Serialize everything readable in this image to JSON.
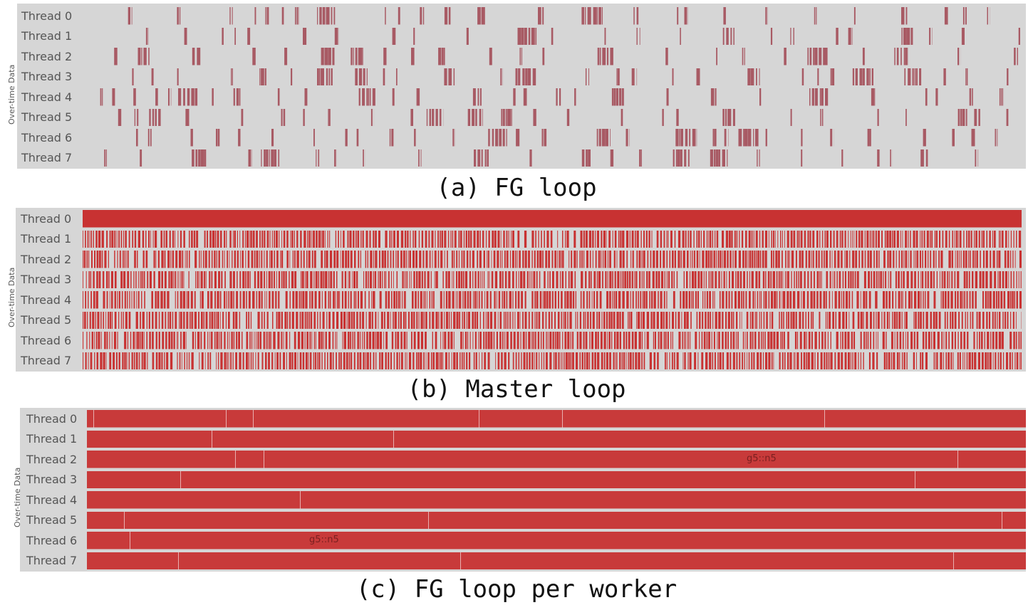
{
  "panels": [
    {
      "id": "a",
      "caption": "(a) FG loop",
      "axis_label": "Over-time Data",
      "style": "sparse",
      "bar_color": "#a85a64",
      "background_color": "#d6d6d6",
      "threads": [
        "Thread 0",
        "Thread 1",
        "Thread 2",
        "Thread 3",
        "Thread 4",
        "Thread 5",
        "Thread 6",
        "Thread 7"
      ]
    },
    {
      "id": "b",
      "caption": "(b) Master loop",
      "axis_label": "Over-time Data",
      "style": "dense",
      "bar_color": "#c83232",
      "background_color": "#d6d6d6",
      "threads": [
        "Thread 0",
        "Thread 1",
        "Thread 2",
        "Thread 3",
        "Thread 4",
        "Thread 5",
        "Thread 6",
        "Thread 7"
      ]
    },
    {
      "id": "c",
      "caption": "(c) FG loop per worker",
      "axis_label": "Over-time Data",
      "style": "full",
      "bar_color": "#c83a3a",
      "background_color": "#d6d6d6",
      "threads": [
        "Thread 0",
        "Thread 1",
        "Thread 2",
        "Thread 3",
        "Thread 4",
        "Thread 5",
        "Thread 6",
        "Thread 7"
      ],
      "segment_labels": [
        {
          "thread": 2,
          "text": "g5::n5"
        },
        {
          "thread": 6,
          "text": "g5::n5"
        }
      ]
    }
  ]
}
